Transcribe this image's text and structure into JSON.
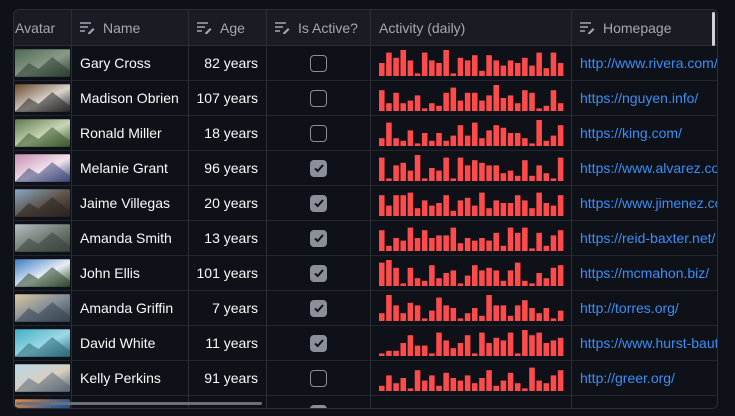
{
  "columns": {
    "avatar": "Avatar",
    "name": "Name",
    "age": "Age",
    "active": "Is Active?",
    "activity": "Activity (daily)",
    "homepage": "Homepage"
  },
  "icons": {
    "header_edit": "text-edit-icon",
    "checkbox_check": "check-icon"
  },
  "colors": {
    "background": "#0e1117",
    "header_background": "#1a1c24",
    "bar": "#ff4b4b",
    "link": "#3b8ef5",
    "checkbox": "#8b8f99"
  },
  "rows": [
    {
      "name": "Gary Cross",
      "age": "82 years",
      "active": false,
      "homepage": "http://www.rivera.com/",
      "avatar_theme": "forest-aerial",
      "activity": [
        5,
        9,
        7,
        10,
        6,
        1,
        9,
        6,
        5,
        10,
        1,
        7,
        6,
        8,
        2,
        8,
        6,
        4,
        6,
        5,
        7,
        4,
        9,
        3,
        9,
        5
      ]
    },
    {
      "name": "Madison Obrien",
      "age": "107 years",
      "active": false,
      "homepage": "https://nguyen.info/",
      "avatar_theme": "laptop-desk",
      "activity": [
        8,
        3,
        7,
        3,
        4,
        6,
        1,
        3,
        2,
        7,
        9,
        4,
        7,
        7,
        4,
        6,
        10,
        5,
        6,
        3,
        8,
        7,
        1,
        2,
        8,
        3
      ]
    },
    {
      "name": "Ronald Miller",
      "age": "18 years",
      "active": false,
      "homepage": "https://king.com/",
      "avatar_theme": "green-paper",
      "activity": [
        3,
        9,
        3,
        2,
        6,
        1,
        5,
        2,
        5,
        2,
        4,
        8,
        4,
        9,
        3,
        6,
        8,
        7,
        5,
        5,
        3,
        1,
        10,
        2,
        4,
        8
      ]
    },
    {
      "name": "Melanie Grant",
      "age": "96 years",
      "active": true,
      "homepage": "https://www.alvarez.com/",
      "avatar_theme": "crowd-pink",
      "activity": [
        9,
        1,
        6,
        7,
        4,
        10,
        1,
        5,
        4,
        9,
        1,
        9,
        6,
        8,
        7,
        6,
        6,
        3,
        4,
        2,
        8,
        2,
        6,
        3,
        1,
        9
      ]
    },
    {
      "name": "Jaime Villegas",
      "age": "20 years",
      "active": true,
      "homepage": "https://www.jimenez.com/",
      "avatar_theme": "railway",
      "activity": [
        8,
        4,
        8,
        8,
        9,
        3,
        6,
        4,
        5,
        8,
        2,
        6,
        7,
        4,
        9,
        3,
        6,
        5,
        5,
        8,
        6,
        3,
        9,
        5,
        4,
        8
      ]
    },
    {
      "name": "Amanda Smith",
      "age": "13 years",
      "active": true,
      "homepage": "https://reid-baxter.net/",
      "avatar_theme": "misty-trees",
      "activity": [
        8,
        2,
        5,
        4,
        9,
        5,
        8,
        5,
        6,
        6,
        9,
        3,
        5,
        4,
        5,
        4,
        7,
        2,
        9,
        7,
        9,
        1,
        7,
        2,
        6,
        8
      ]
    },
    {
      "name": "John Ellis",
      "age": "101 years",
      "active": true,
      "homepage": "https://mcmahon.biz/",
      "avatar_theme": "mountains-blue",
      "activity": [
        9,
        10,
        7,
        1,
        7,
        3,
        2,
        8,
        3,
        5,
        6,
        1,
        4,
        8,
        6,
        7,
        6,
        2,
        6,
        9,
        2,
        1,
        5,
        3,
        7,
        8
      ]
    },
    {
      "name": "Amanda Griffin",
      "age": "7 years",
      "active": true,
      "homepage": "http://torres.org/",
      "avatar_theme": "mountain-sun",
      "activity": [
        3,
        10,
        6,
        3,
        7,
        6,
        1,
        4,
        9,
        6,
        5,
        1,
        3,
        5,
        2,
        10,
        6,
        6,
        2,
        6,
        8,
        5,
        3,
        5,
        1,
        4
      ]
    },
    {
      "name": "David White",
      "age": "11 years",
      "active": true,
      "homepage": "https://www.hurst-bautista.com/",
      "avatar_theme": "cable-car",
      "activity": [
        1,
        2,
        2,
        5,
        8,
        4,
        4,
        1,
        9,
        6,
        3,
        5,
        8,
        1,
        9,
        5,
        7,
        6,
        9,
        1,
        10,
        8,
        9,
        5,
        6,
        7
      ]
    },
    {
      "name": "Kelly Perkins",
      "age": "91 years",
      "active": false,
      "homepage": "http://greer.org/",
      "avatar_theme": "beach",
      "activity": [
        2,
        6,
        3,
        5,
        1,
        8,
        4,
        6,
        2,
        7,
        5,
        4,
        6,
        3,
        5,
        8,
        2,
        4,
        7,
        3,
        1,
        9,
        4,
        3,
        6,
        8
      ]
    },
    {
      "name": "",
      "age": "",
      "active": true,
      "homepage": "",
      "avatar_theme": "sunset",
      "activity": []
    }
  ]
}
